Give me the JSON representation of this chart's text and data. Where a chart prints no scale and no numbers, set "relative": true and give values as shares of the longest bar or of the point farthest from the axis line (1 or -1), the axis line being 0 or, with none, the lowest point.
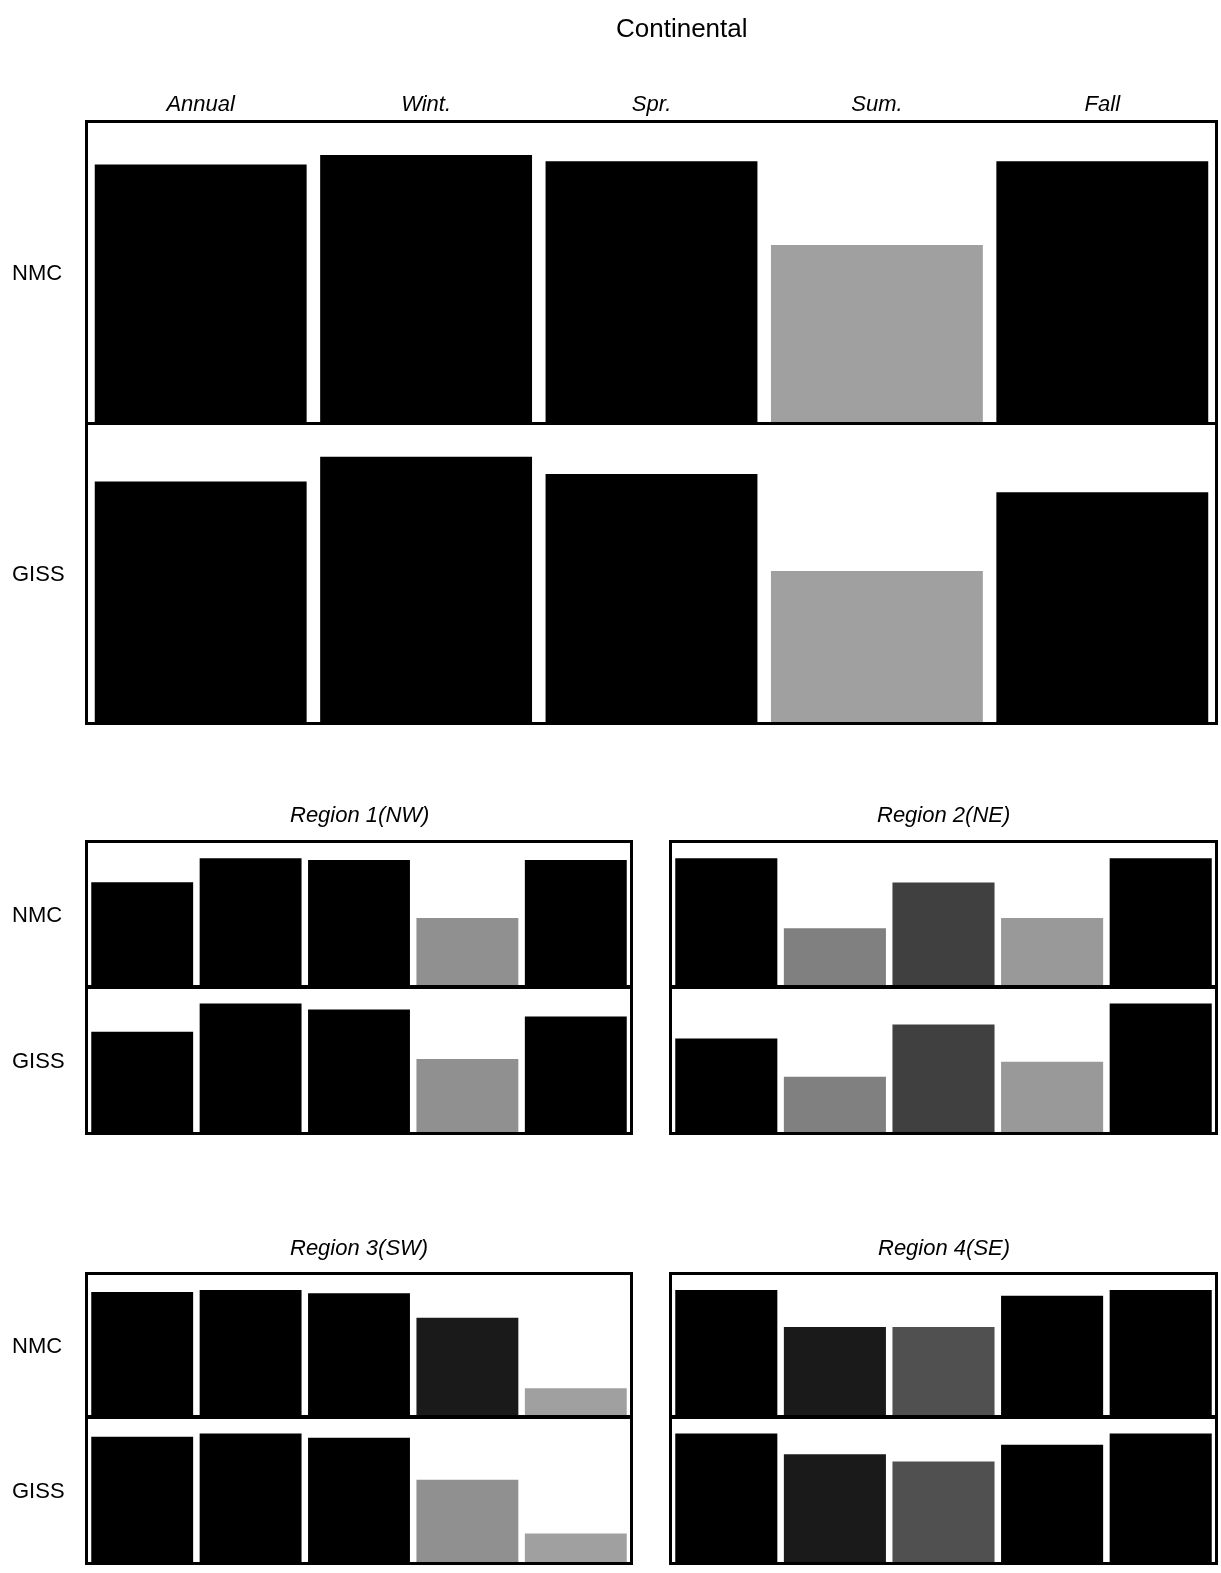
{
  "chart_data": [
    {
      "type": "bar",
      "title": "Continental",
      "ylabel": "NMC",
      "categories": [
        "Annual",
        "Wint.",
        "Spr.",
        "Sum.",
        "Fall"
      ],
      "values": [
        0.965,
        1,
        0.977,
        0.663,
        0.977
      ],
      "colors": [
        "#000000",
        "#000000",
        "#000000",
        "#a0a0a0",
        "#000000"
      ],
      "relative": true
    },
    {
      "type": "bar",
      "ylabel": "GISS",
      "categories": [
        null,
        null,
        null,
        null,
        null
      ],
      "values": [
        0.907,
        1,
        0.935,
        0.569,
        0.866
      ],
      "colors": [
        "#000000",
        "#000000",
        "#000000",
        "#a0a0a0",
        "#000000"
      ],
      "relative": true
    },
    {
      "type": "bar",
      "title": "Region 1(NW)",
      "ylabel": "NMC",
      "categories": [
        null,
        null,
        null,
        null,
        null
      ],
      "values": [
        0.813,
        1,
        0.986,
        0.532,
        0.986
      ],
      "colors": [
        "#000000",
        "#000000",
        "#000000",
        "#909090",
        "#000000"
      ],
      "relative": true
    },
    {
      "type": "bar",
      "title": "Region 2(NE)",
      "categories": [
        null,
        null,
        null,
        null,
        null
      ],
      "values": [
        1,
        0.453,
        0.81,
        0.533,
        1
      ],
      "colors": [
        "#000000",
        "#808080",
        "#404040",
        "#999999",
        "#000000"
      ],
      "relative": true
    },
    {
      "type": "bar",
      "ylabel": "GISS",
      "categories": [
        null,
        null,
        null,
        null,
        null
      ],
      "values": [
        0.78,
        1,
        0.953,
        0.567,
        0.898
      ],
      "colors": [
        "#000000",
        "#000000",
        "#000000",
        "#909090",
        "#000000"
      ],
      "relative": true
    },
    {
      "type": "bar",
      "categories": [
        null,
        null,
        null,
        null,
        null
      ],
      "values": [
        0.727,
        0.43,
        0.836,
        0.547,
        1
      ],
      "colors": [
        "#000000",
        "#808080",
        "#404040",
        "#999999",
        "#000000"
      ],
      "relative": true
    },
    {
      "type": "bar",
      "title": "Region 3(SW)",
      "ylabel": "NMC",
      "categories": [
        null,
        null,
        null,
        null,
        null
      ],
      "values": [
        0.984,
        1,
        0.976,
        0.78,
        0.22
      ],
      "colors": [
        "#000000",
        "#000000",
        "#000000",
        "#1a1a1a",
        "#a0a0a0"
      ],
      "relative": true
    },
    {
      "type": "bar",
      "title": "Region 4(SE)",
      "categories": [
        null,
        null,
        null,
        null,
        null
      ],
      "values": [
        1,
        0.707,
        0.707,
        0.955,
        1
      ],
      "colors": [
        "#000000",
        "#1a1a1a",
        "#505050",
        "#000000",
        "#000000"
      ],
      "relative": true
    },
    {
      "type": "bar",
      "ylabel": "GISS",
      "categories": [
        null,
        null,
        null,
        null,
        null
      ],
      "values": [
        0.975,
        1,
        0.967,
        0.639,
        0.221
      ],
      "colors": [
        "#000000",
        "#000000",
        "#000000",
        "#909090",
        "#a0a0a0"
      ],
      "relative": true
    },
    {
      "type": "bar",
      "categories": [
        null,
        null,
        null,
        null,
        null
      ],
      "values": [
        1,
        0.839,
        0.782,
        0.911,
        1
      ],
      "colors": [
        "#000000",
        "#1a1a1a",
        "#505050",
        "#000000",
        "#000000"
      ],
      "relative": true
    }
  ]
}
